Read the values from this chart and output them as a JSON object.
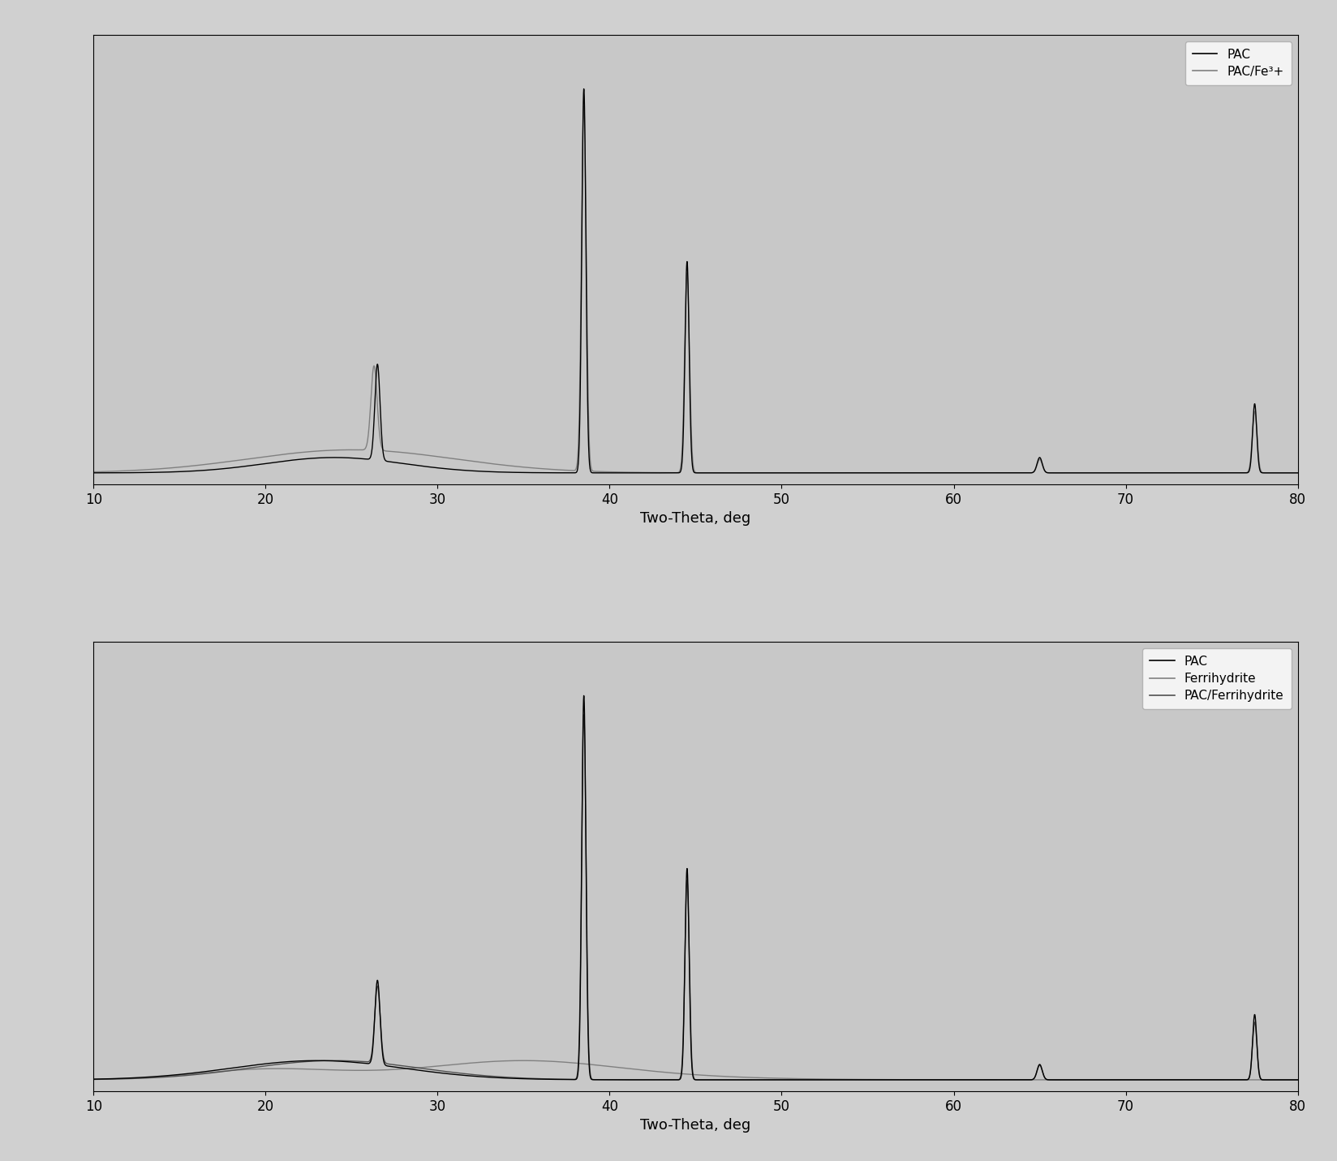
{
  "plot_bg_color": "#c8c8c8",
  "fig_bg_color": "#d0d0d0",
  "xlim": [
    10,
    80
  ],
  "xlabel": "Two-Theta, deg",
  "xlabel_fontsize": 13,
  "tick_fontsize": 12,
  "top_legend_labels": [
    "PAC",
    "PAC/Fe³+"
  ],
  "bottom_legend_labels": [
    "PAC",
    "Ferrihydrite",
    "PAC/Ferrihydrite"
  ]
}
